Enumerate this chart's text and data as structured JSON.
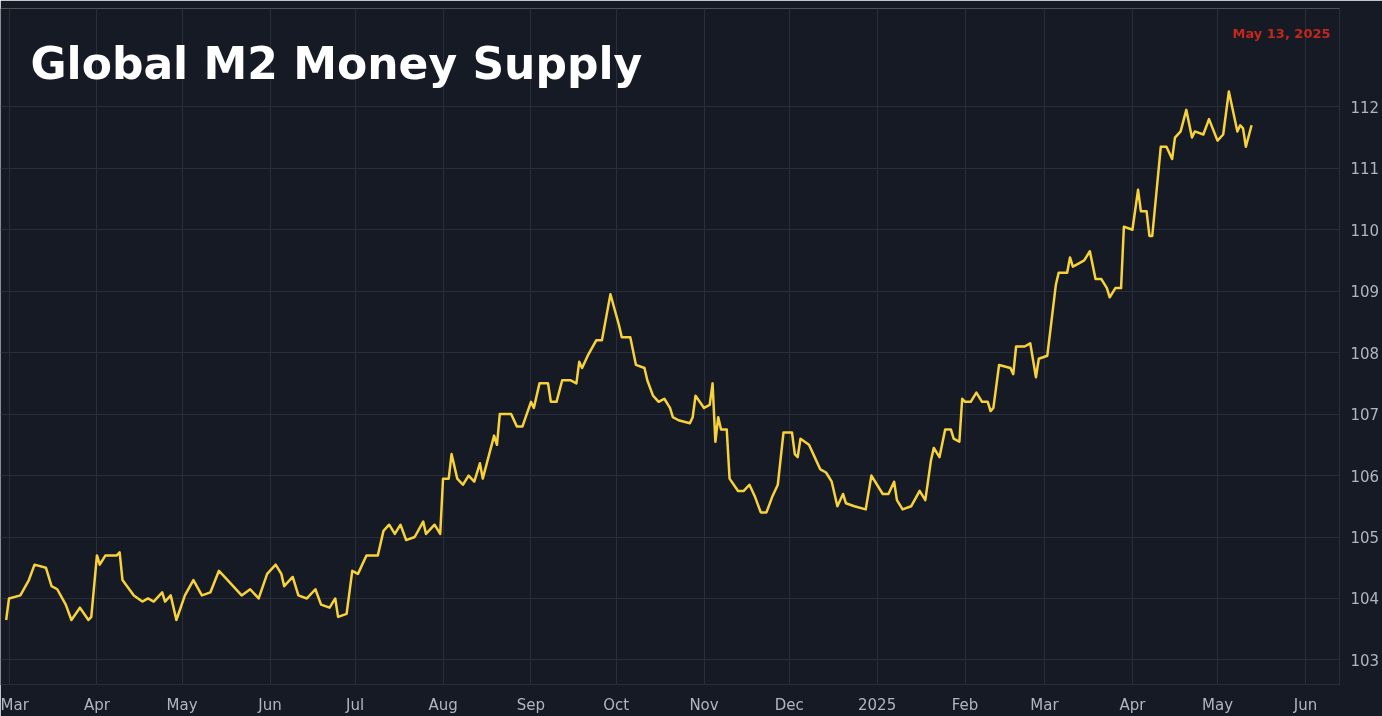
{
  "chart_data": {
    "type": "line",
    "title": "Global M2 Money Supply",
    "annotations": [
      "May 13, 2025"
    ],
    "x": [
      "2024-02-29",
      "2024-03-01",
      "2024-03-05",
      "2024-03-08",
      "2024-03-10",
      "2024-03-14",
      "2024-03-16",
      "2024-03-18",
      "2024-03-21",
      "2024-03-23",
      "2024-03-26",
      "2024-03-29",
      "2024-03-30",
      "2024-04-01",
      "2024-04-02",
      "2024-04-04",
      "2024-04-08",
      "2024-04-09",
      "2024-04-10",
      "2024-04-14",
      "2024-04-17",
      "2024-04-19",
      "2024-04-21",
      "2024-04-24",
      "2024-04-25",
      "2024-04-27",
      "2024-04-29",
      "2024-05-02",
      "2024-05-05",
      "2024-05-08",
      "2024-05-11",
      "2024-05-14",
      "2024-05-16",
      "2024-05-19",
      "2024-05-22",
      "2024-05-25",
      "2024-05-28",
      "2024-05-31",
      "2024-06-03",
      "2024-06-05",
      "2024-06-06",
      "2024-06-09",
      "2024-06-11",
      "2024-06-14",
      "2024-06-17",
      "2024-06-19",
      "2024-06-22",
      "2024-06-24",
      "2024-06-25",
      "2024-06-28",
      "2024-06-30",
      "2024-07-02",
      "2024-07-05",
      "2024-07-09",
      "2024-07-11",
      "2024-07-13",
      "2024-07-15",
      "2024-07-17",
      "2024-07-19",
      "2024-07-22",
      "2024-07-25",
      "2024-07-26",
      "2024-07-29",
      "2024-07-31",
      "2024-08-01",
      "2024-08-03",
      "2024-08-04",
      "2024-08-06",
      "2024-08-08",
      "2024-08-10",
      "2024-08-12",
      "2024-08-14",
      "2024-08-15",
      "2024-08-17",
      "2024-08-19",
      "2024-08-20",
      "2024-08-21",
      "2024-08-25",
      "2024-08-27",
      "2024-08-29",
      "2024-09-01",
      "2024-09-02",
      "2024-09-04",
      "2024-09-07",
      "2024-09-08",
      "2024-09-10",
      "2024-09-12",
      "2024-09-15",
      "2024-09-17",
      "2024-09-18",
      "2024-09-19",
      "2024-09-21",
      "2024-09-24",
      "2024-09-26",
      "2024-09-29",
      "2024-10-02",
      "2024-10-03",
      "2024-10-06",
      "2024-10-08",
      "2024-10-11",
      "2024-10-12",
      "2024-10-14",
      "2024-10-16",
      "2024-10-18",
      "2024-10-20",
      "2024-10-21",
      "2024-10-23",
      "2024-10-27",
      "2024-10-28",
      "2024-10-29",
      "2024-11-01",
      "2024-11-03",
      "2024-11-04",
      "2024-11-05",
      "2024-11-06",
      "2024-11-07",
      "2024-11-09",
      "2024-11-10",
      "2024-11-13",
      "2024-11-15",
      "2024-11-17",
      "2024-11-19",
      "2024-11-21",
      "2024-11-23",
      "2024-11-25",
      "2024-11-27",
      "2024-11-29",
      "2024-12-02",
      "2024-12-03",
      "2024-12-04",
      "2024-12-05",
      "2024-12-08",
      "2024-12-10",
      "2024-12-12",
      "2024-12-14",
      "2024-12-16",
      "2024-12-18",
      "2024-12-20",
      "2024-12-21",
      "2024-12-24",
      "2024-12-28",
      "2024-12-30",
      "2025-01-03",
      "2025-01-05",
      "2025-01-07",
      "2025-01-08",
      "2025-01-10",
      "2025-01-13",
      "2025-01-16",
      "2025-01-18",
      "2025-01-20",
      "2025-01-21",
      "2025-01-23",
      "2025-01-25",
      "2025-01-27",
      "2025-01-28",
      "2025-01-30",
      "2025-01-31",
      "2025-02-01",
      "2025-02-03",
      "2025-02-05",
      "2025-02-07",
      "2025-02-09",
      "2025-02-10",
      "2025-02-11",
      "2025-02-13",
      "2025-02-17",
      "2025-02-18",
      "2025-02-19",
      "2025-02-22",
      "2025-02-24",
      "2025-02-26",
      "2025-02-27",
      "2025-03-02",
      "2025-03-05",
      "2025-03-06",
      "2025-03-09",
      "2025-03-10",
      "2025-03-11",
      "2025-03-13",
      "2025-03-15",
      "2025-03-17",
      "2025-03-19",
      "2025-03-21",
      "2025-03-23",
      "2025-03-24",
      "2025-03-26",
      "2025-03-28",
      "2025-03-29",
      "2025-04-01",
      "2025-04-03",
      "2025-04-04",
      "2025-04-06",
      "2025-04-07",
      "2025-04-08",
      "2025-04-11",
      "2025-04-13",
      "2025-04-15",
      "2025-04-16",
      "2025-04-18",
      "2025-04-20",
      "2025-04-22",
      "2025-04-23",
      "2025-04-26",
      "2025-04-28",
      "2025-05-01",
      "2025-05-03",
      "2025-05-05",
      "2025-05-08",
      "2025-05-09",
      "2025-05-10",
      "2025-05-11",
      "2025-05-13"
    ],
    "series": [
      {
        "color": "#f7d23a",
        "values": [
          103.65,
          104.0,
          104.05,
          104.3,
          104.55,
          104.5,
          104.2,
          104.15,
          103.9,
          103.65,
          103.85,
          103.65,
          103.7,
          104.7,
          104.55,
          104.7,
          104.7,
          104.75,
          104.3,
          104.05,
          103.95,
          104.0,
          103.95,
          104.1,
          103.95,
          104.05,
          103.65,
          104.05,
          104.3,
          104.05,
          104.1,
          104.45,
          104.35,
          104.2,
          104.05,
          104.15,
          104.0,
          104.4,
          104.55,
          104.4,
          104.2,
          104.35,
          104.05,
          104.0,
          104.15,
          103.9,
          103.85,
          104.0,
          103.7,
          103.75,
          104.45,
          104.4,
          104.7,
          104.7,
          105.1,
          105.2,
          105.05,
          105.2,
          104.95,
          105.0,
          105.25,
          105.05,
          105.2,
          105.05,
          105.95,
          105.95,
          106.35,
          105.95,
          105.85,
          106.0,
          105.9,
          106.2,
          105.95,
          106.3,
          106.65,
          106.5,
          107.0,
          107.0,
          106.8,
          106.8,
          107.2,
          107.1,
          107.5,
          107.5,
          107.2,
          107.2,
          107.55,
          107.55,
          107.5,
          107.85,
          107.75,
          107.95,
          108.2,
          108.2,
          108.95,
          108.45,
          108.25,
          108.25,
          107.8,
          107.75,
          107.55,
          107.3,
          107.2,
          107.25,
          107.1,
          106.95,
          106.9,
          106.85,
          106.95,
          107.3,
          107.1,
          107.15,
          107.5,
          106.55,
          106.95,
          106.75,
          106.75,
          105.95,
          105.75,
          105.75,
          105.85,
          105.65,
          105.4,
          105.4,
          105.65,
          105.85,
          106.7,
          106.7,
          106.35,
          106.3,
          106.6,
          106.5,
          106.3,
          106.1,
          106.05,
          105.9,
          105.5,
          105.7,
          105.55,
          105.5,
          105.45,
          106.0,
          105.7,
          105.7,
          105.9,
          105.6,
          105.45,
          105.5,
          105.75,
          105.6,
          106.25,
          106.45,
          106.3,
          106.75,
          106.75,
          106.6,
          106.55,
          107.25,
          107.2,
          107.2,
          107.35,
          107.2,
          107.2,
          107.05,
          107.1,
          107.8,
          107.75,
          107.65,
          108.1,
          108.1,
          108.15,
          107.6,
          107.9,
          107.95,
          109.1,
          109.3,
          109.3,
          109.55,
          109.4,
          109.45,
          109.5,
          109.65,
          109.2,
          109.2,
          109.05,
          108.9,
          109.05,
          109.05,
          110.05,
          110.0,
          110.65,
          110.3,
          110.3,
          109.9,
          109.9,
          111.35,
          111.35,
          111.15,
          111.5,
          111.6,
          111.95,
          111.5,
          111.6,
          111.55,
          111.8,
          111.45,
          111.55,
          112.25,
          111.6,
          111.7,
          111.65,
          111.35,
          111.7
        ]
      }
    ],
    "xlim": [
      "2024-02-27",
      "2025-06-13"
    ],
    "xticks": [
      {
        "value": "2024-03-01",
        "label": "Mar"
      },
      {
        "value": "2024-04-01",
        "label": "Apr"
      },
      {
        "value": "2024-05-01",
        "label": "May"
      },
      {
        "value": "2024-06-01",
        "label": "Jun"
      },
      {
        "value": "2024-07-01",
        "label": "Jul"
      },
      {
        "value": "2024-08-01",
        "label": "Aug"
      },
      {
        "value": "2024-09-01",
        "label": "Sep"
      },
      {
        "value": "2024-10-01",
        "label": "Oct"
      },
      {
        "value": "2024-11-01",
        "label": "Nov"
      },
      {
        "value": "2024-12-01",
        "label": "Dec"
      },
      {
        "value": "2025-01-01",
        "label": "2025"
      },
      {
        "value": "2025-02-01",
        "label": "Feb"
      },
      {
        "value": "2025-03-01",
        "label": "Mar"
      },
      {
        "value": "2025-04-01",
        "label": "Apr"
      },
      {
        "value": "2025-05-01",
        "label": "May"
      },
      {
        "value": "2025-06-01",
        "label": "Jun"
      }
    ],
    "ylim": [
      102.6,
      113.6
    ],
    "yticks": [
      103,
      104,
      105,
      106,
      107,
      108,
      109,
      110,
      111,
      112
    ],
    "grid": true,
    "marker": "none",
    "line_style": "solid"
  }
}
